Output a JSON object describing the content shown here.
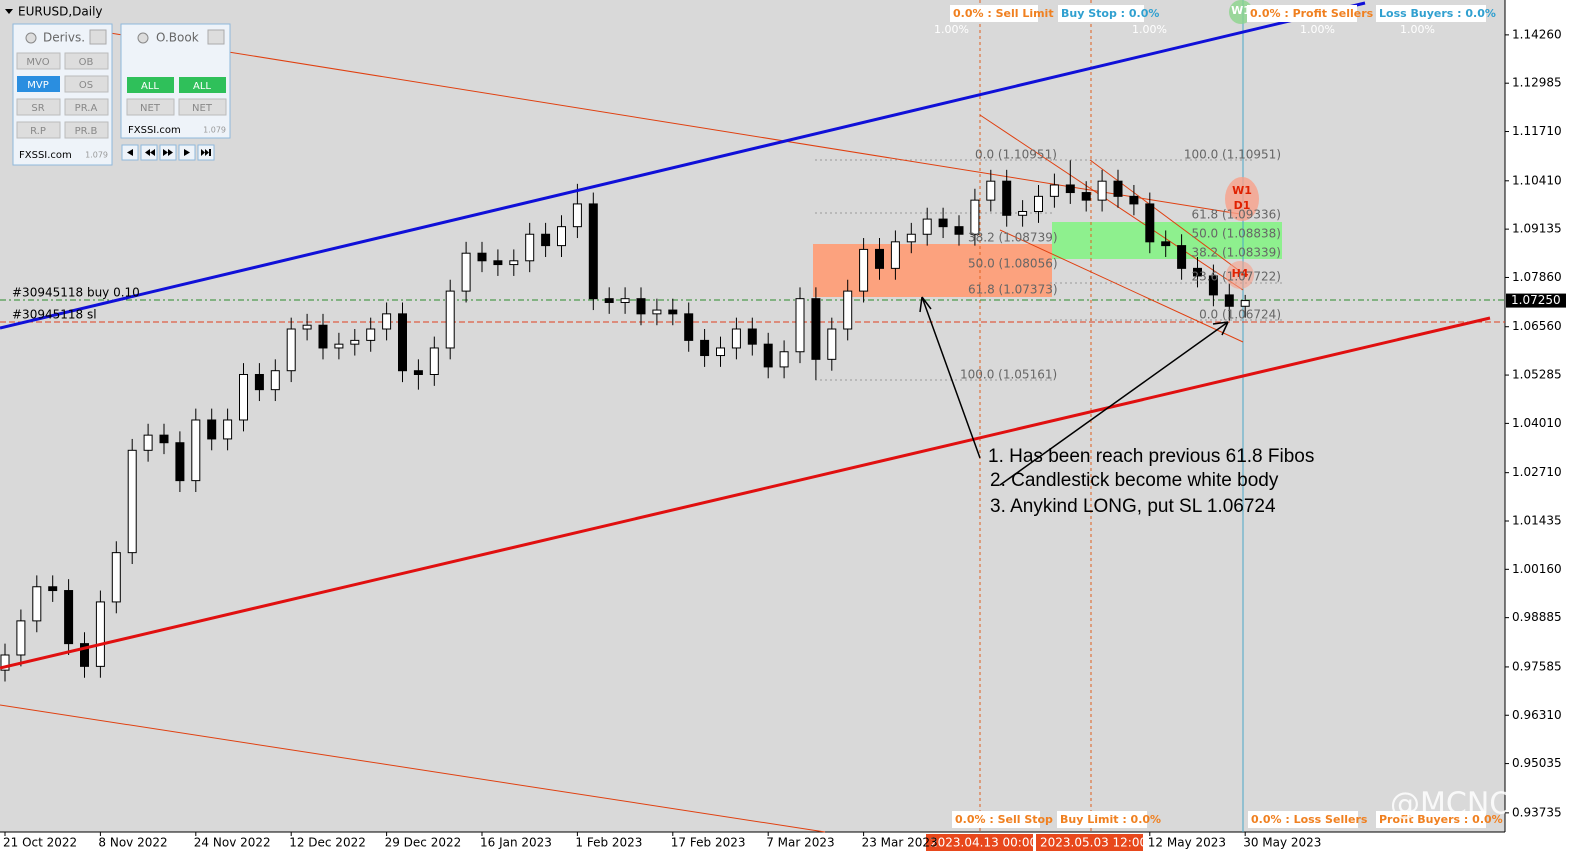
{
  "header": {
    "title": "EURUSD,Daily"
  },
  "panels": {
    "derivs": {
      "title": "Derivs.",
      "buttons": [
        "MVO",
        "OB",
        "MVP",
        "OS",
        "SR",
        "PR.A",
        "R.P",
        "PR.B"
      ],
      "brand": "FXSSI.com",
      "version": "1.079"
    },
    "obook": {
      "title": "O.Book",
      "buttons": [
        "ALL",
        "ALL",
        "NET",
        "NET"
      ],
      "brand": "FXSSI.com",
      "version": "1.079"
    }
  },
  "top_labels": [
    "0.0% : Sell Limit",
    "1.00%",
    "Buy Stop : 0.0%",
    "1.00%",
    "0.0% : Profit Sellers",
    "1.00%",
    "Loss Buyers : 0.0%",
    "1.00%"
  ],
  "bottom_labels": [
    "0.0% : Sell Stop",
    "Buy Limit : 0.0%",
    "0.0% : Loss Sellers",
    "Profit Buyers : 0.0%"
  ],
  "time_markers": [
    "2023.04.13 00:00",
    "2023.05.03 12:00"
  ],
  "fibo_left": [
    "0.0 (1.10951)",
    "38.2 (1.08739)",
    "50.0 (1.08056)",
    "61.8 (1.07373)",
    "100.0 (1.05161)"
  ],
  "fibo_right": [
    "100.0 (1.10951)",
    "61.8 (1.09336)",
    "50.0 (1.08838)",
    "38.2 (1.08339)",
    "23.6 (1.07722)",
    "0.0 (1.06724)"
  ],
  "timeframe_badges": [
    "W1",
    "W1",
    "D1",
    "H4"
  ],
  "orders": [
    "#30945118 buy 0.10",
    "#30945118 sl"
  ],
  "notes": [
    "1. Has been reach previous 61.8 Fibos",
    "2. Candlestick become white body",
    "3. Anykind LONG, put SL 1.06724"
  ],
  "watermark": "@MCNOER",
  "chart_data": {
    "type": "candlestick",
    "up_color": "#ffffff",
    "down_color": "#000000",
    "categories": [
      "21 Oct 2022",
      null,
      null,
      null,
      null,
      null,
      "8 Nov 2022",
      null,
      null,
      null,
      null,
      null,
      "24 Nov 2022",
      null,
      null,
      null,
      null,
      null,
      "12 Dec 2022",
      null,
      null,
      null,
      null,
      null,
      "29 Dec 2022",
      null,
      null,
      null,
      null,
      null,
      "16 Jan 2023",
      null,
      null,
      null,
      null,
      null,
      "1 Feb 2023",
      null,
      null,
      null,
      null,
      null,
      "17 Feb 2023",
      null,
      null,
      null,
      null,
      null,
      "7 Mar 2023",
      null,
      null,
      null,
      null,
      null,
      "23 Mar 2023",
      null,
      null,
      null,
      null,
      null,
      null,
      null,
      null,
      null,
      null,
      null,
      null,
      null,
      null,
      null,
      null,
      null,
      "12 May 2023",
      null,
      null,
      null,
      null,
      null,
      "30 May 2023"
    ],
    "ohlc": [
      [
        0.975,
        0.982,
        0.972,
        0.979
      ],
      [
        0.979,
        0.991,
        0.976,
        0.988
      ],
      [
        0.988,
        1.0,
        0.985,
        0.997
      ],
      [
        0.997,
        1.0,
        0.993,
        0.996
      ],
      [
        0.996,
        0.999,
        0.979,
        0.982
      ],
      [
        0.982,
        0.985,
        0.973,
        0.976
      ],
      [
        0.976,
        0.996,
        0.973,
        0.993
      ],
      [
        0.993,
        1.009,
        0.99,
        1.006
      ],
      [
        1.006,
        1.036,
        1.003,
        1.033
      ],
      [
        1.033,
        1.04,
        1.03,
        1.037
      ],
      [
        1.037,
        1.04,
        1.032,
        1.035
      ],
      [
        1.035,
        1.038,
        1.022,
        1.025
      ],
      [
        1.025,
        1.044,
        1.022,
        1.041
      ],
      [
        1.041,
        1.044,
        1.033,
        1.036
      ],
      [
        1.036,
        1.044,
        1.033,
        1.041
      ],
      [
        1.041,
        1.056,
        1.038,
        1.053
      ],
      [
        1.053,
        1.056,
        1.046,
        1.049
      ],
      [
        1.049,
        1.057,
        1.046,
        1.054
      ],
      [
        1.054,
        1.068,
        1.051,
        1.065
      ],
      [
        1.065,
        1.069,
        1.062,
        1.066
      ],
      [
        1.066,
        1.069,
        1.057,
        1.06
      ],
      [
        1.06,
        1.064,
        1.057,
        1.061
      ],
      [
        1.061,
        1.065,
        1.058,
        1.062
      ],
      [
        1.062,
        1.068,
        1.059,
        1.065
      ],
      [
        1.065,
        1.072,
        1.062,
        1.069
      ],
      [
        1.069,
        1.072,
        1.051,
        1.054
      ],
      [
        1.054,
        1.057,
        1.049,
        1.053
      ],
      [
        1.053,
        1.063,
        1.05,
        1.06
      ],
      [
        1.06,
        1.078,
        1.057,
        1.075
      ],
      [
        1.075,
        1.088,
        1.072,
        1.085
      ],
      [
        1.085,
        1.088,
        1.08,
        1.083
      ],
      [
        1.083,
        1.086,
        1.079,
        1.082
      ],
      [
        1.082,
        1.086,
        1.079,
        1.083
      ],
      [
        1.083,
        1.093,
        1.08,
        1.09
      ],
      [
        1.09,
        1.093,
        1.084,
        1.087
      ],
      [
        1.087,
        1.095,
        1.084,
        1.092
      ],
      [
        1.092,
        1.1033,
        1.089,
        1.098
      ],
      [
        1.098,
        1.101,
        1.07,
        1.073
      ],
      [
        1.073,
        1.076,
        1.069,
        1.072
      ],
      [
        1.072,
        1.076,
        1.069,
        1.073
      ],
      [
        1.073,
        1.076,
        1.066,
        1.069
      ],
      [
        1.069,
        1.073,
        1.066,
        1.07
      ],
      [
        1.07,
        1.073,
        1.066,
        1.069
      ],
      [
        1.069,
        1.072,
        1.059,
        1.062
      ],
      [
        1.062,
        1.065,
        1.055,
        1.058
      ],
      [
        1.058,
        1.063,
        1.055,
        1.06
      ],
      [
        1.06,
        1.068,
        1.057,
        1.065
      ],
      [
        1.065,
        1.068,
        1.058,
        1.061
      ],
      [
        1.061,
        1.064,
        1.052,
        1.055
      ],
      [
        1.055,
        1.062,
        1.052,
        1.059
      ],
      [
        1.059,
        1.076,
        1.056,
        1.073
      ],
      [
        1.073,
        1.076,
        1.0516,
        1.057
      ],
      [
        1.057,
        1.068,
        1.054,
        1.065
      ],
      [
        1.065,
        1.078,
        1.062,
        1.075
      ],
      [
        1.075,
        1.089,
        1.072,
        1.086
      ],
      [
        1.086,
        1.089,
        1.078,
        1.081
      ],
      [
        1.081,
        1.091,
        1.078,
        1.088
      ],
      [
        1.088,
        1.093,
        1.085,
        1.09
      ],
      [
        1.09,
        1.097,
        1.087,
        1.094
      ],
      [
        1.094,
        1.097,
        1.089,
        1.092
      ],
      [
        1.092,
        1.095,
        1.087,
        1.09
      ],
      [
        1.09,
        1.102,
        1.087,
        1.099
      ],
      [
        1.099,
        1.107,
        1.096,
        1.104
      ],
      [
        1.104,
        1.107,
        1.092,
        1.095
      ],
      [
        1.095,
        1.099,
        1.092,
        1.096
      ],
      [
        1.096,
        1.103,
        1.093,
        1.1
      ],
      [
        1.1,
        1.106,
        1.097,
        1.103
      ],
      [
        1.103,
        1.1095,
        1.098,
        1.101
      ],
      [
        1.101,
        1.104,
        1.096,
        1.099
      ],
      [
        1.099,
        1.107,
        1.096,
        1.104
      ],
      [
        1.104,
        1.107,
        1.097,
        1.1
      ],
      [
        1.1,
        1.103,
        1.095,
        1.098
      ],
      [
        1.098,
        1.101,
        1.085,
        1.088
      ],
      [
        1.088,
        1.091,
        1.084,
        1.087
      ],
      [
        1.087,
        1.09,
        1.078,
        1.081
      ],
      [
        1.081,
        1.084,
        1.076,
        1.079
      ],
      [
        1.079,
        1.082,
        1.071,
        1.074
      ],
      [
        1.074,
        1.077,
        1.0672,
        1.071
      ],
      [
        1.071,
        1.074,
        1.068,
        1.0725
      ]
    ],
    "ylim": [
      0.9323,
      1.1518
    ],
    "yticks": [
      {
        "value": 1.1426,
        "label": "1.14260"
      },
      {
        "value": 1.12985,
        "label": "1.12985"
      },
      {
        "value": 1.1171,
        "label": "1.11710"
      },
      {
        "value": 1.1041,
        "label": "1.10410"
      },
      {
        "value": 1.09135,
        "label": "1.09135"
      },
      {
        "value": 1.0786,
        "label": "1.07860"
      },
      {
        "value": 1.0656,
        "label": "1.06560"
      },
      {
        "value": 1.05285,
        "label": "1.05285"
      },
      {
        "value": 1.0401,
        "label": "1.04010"
      },
      {
        "value": 1.0271,
        "label": "1.02710"
      },
      {
        "value": 1.01435,
        "label": "1.01435"
      },
      {
        "value": 1.0016,
        "label": "1.00160"
      },
      {
        "value": 0.98885,
        "label": "0.98885"
      },
      {
        "value": 0.97585,
        "label": "0.97585"
      },
      {
        "value": 0.9631,
        "label": "0.96310"
      },
      {
        "value": 0.95035,
        "label": "0.95035"
      },
      {
        "value": 0.93735,
        "label": "0.93735"
      }
    ],
    "current_price": {
      "value": 1.0725,
      "label": "1.07250"
    }
  }
}
